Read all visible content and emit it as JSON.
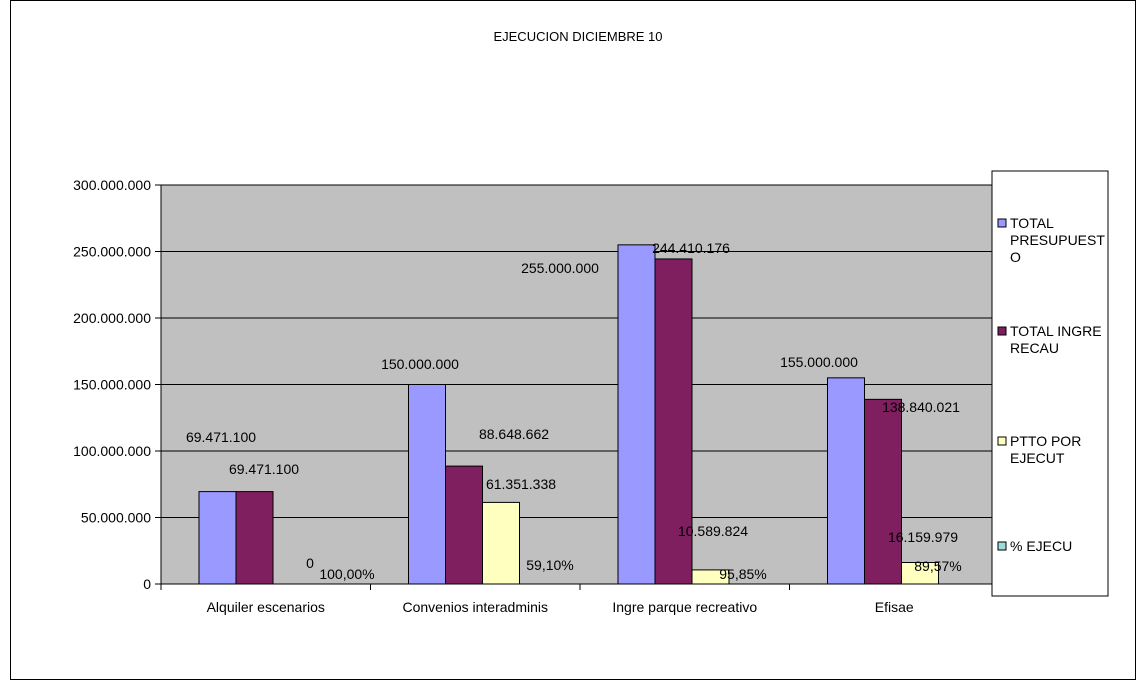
{
  "chart_data": {
    "type": "bar",
    "title": "EJECUCION DICIEMBRE 10",
    "categories": [
      "Alquiler escenarios",
      "Convenios interadminis",
      "Ingre  parque recreativo",
      "Efisae"
    ],
    "series": [
      {
        "name": "TOTAL PRESUPUESTO",
        "legend_lines": [
          "TOTAL",
          "PRESUPUEST",
          "O"
        ],
        "color": "#9999ff",
        "values": [
          69471100,
          150000000,
          255000000,
          155000000
        ],
        "labels": [
          "69.471.100",
          "150.000.000",
          "255.000.000",
          "155.000.000"
        ]
      },
      {
        "name": "TOTAL INGRE RECAU",
        "legend_lines": [
          "TOTAL INGRE",
          "RECAU"
        ],
        "color": "#7f1f5f",
        "values": [
          69471100,
          88648662,
          244410176,
          138840021
        ],
        "labels": [
          "69.471.100",
          "88.648.662",
          "244.410.176",
          "138.840.021"
        ]
      },
      {
        "name": "PTTO POR EJECUT",
        "legend_lines": [
          "PTTO POR",
          "EJECUT"
        ],
        "color": "#ffffc0",
        "values": [
          0,
          61351338,
          10589824,
          16159979
        ],
        "labels": [
          "0",
          "61.351.338",
          "10.589.824",
          "16.159.979"
        ]
      },
      {
        "name": "% EJECU",
        "legend_lines": [
          "% EJECU"
        ],
        "color": "#99dddd",
        "values": [
          1.0,
          0.591,
          0.9585,
          0.8957
        ],
        "labels": [
          "100,00%",
          "59,10%",
          "95,85%",
          "89,57%"
        ]
      }
    ],
    "ylim": [
      0,
      300000000
    ],
    "yticks": [
      0,
      50000000,
      100000000,
      150000000,
      200000000,
      250000000,
      300000000
    ],
    "ytick_labels": [
      "0",
      "50.000.000",
      "100.000.000",
      "150.000.000",
      "200.000.000",
      "250.000.000",
      "300.000.000"
    ],
    "grid": true,
    "legend_position": "right",
    "plot_background": "#c0c0c0",
    "xlabel": "",
    "ylabel": ""
  }
}
